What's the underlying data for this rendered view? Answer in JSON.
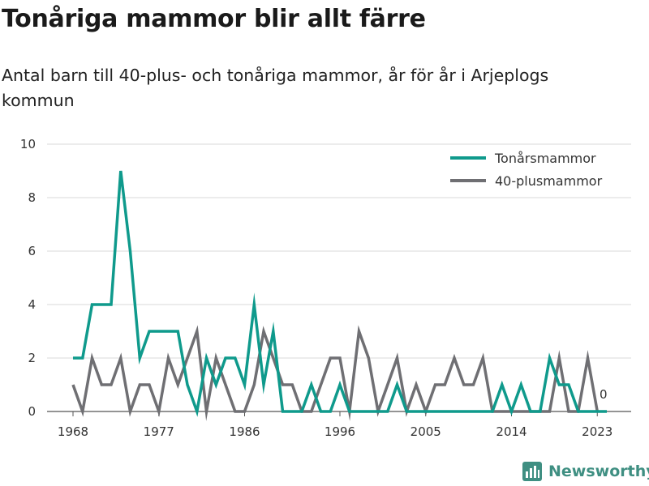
{
  "title": "Tonåriga mammor blir allt färre",
  "subtitle": "Antal barn till 40-plus- och tonåriga mammor, år för år i Arjeplogs kommun",
  "brand": {
    "name": "Newsworthy",
    "icon": "bar-chart-logo-icon",
    "color": "#3f8f82"
  },
  "chart_data": {
    "type": "line",
    "title": "Tonåriga mammor blir allt färre",
    "subtitle": "Antal barn till 40-plus- och tonåriga mammor, år för år i Arjeplogs kommun",
    "xlabel": "",
    "ylabel": "",
    "x": [
      1968,
      1969,
      1970,
      1971,
      1972,
      1973,
      1974,
      1975,
      1976,
      1977,
      1978,
      1979,
      1980,
      1981,
      1982,
      1983,
      1984,
      1985,
      1986,
      1987,
      1988,
      1989,
      1990,
      1991,
      1992,
      1993,
      1994,
      1995,
      1996,
      1997,
      1998,
      1999,
      2000,
      2001,
      2002,
      2003,
      2004,
      2005,
      2006,
      2007,
      2008,
      2009,
      2010,
      2011,
      2012,
      2013,
      2014,
      2015,
      2016,
      2017,
      2018,
      2019,
      2020,
      2021,
      2022,
      2023,
      2024
    ],
    "series": [
      {
        "name": "Tonårsmammor",
        "color": "#0f9a8c",
        "values": [
          2,
          2,
          4,
          4,
          4,
          9,
          6,
          2,
          3,
          3,
          3,
          3,
          1,
          0,
          2,
          1,
          2,
          2,
          1,
          4,
          1,
          3,
          0,
          0,
          0,
          1,
          0,
          0,
          1,
          0,
          0,
          0,
          0,
          0,
          1,
          0,
          0,
          0,
          0,
          0,
          0,
          0,
          0,
          0,
          0,
          1,
          0,
          1,
          0,
          0,
          2,
          1,
          1,
          0,
          0,
          0,
          0
        ]
      },
      {
        "name": "40-plusmammor",
        "color": "#6f6f73",
        "values": [
          1,
          0,
          2,
          1,
          1,
          2,
          0,
          1,
          1,
          0,
          2,
          1,
          2,
          3,
          0,
          2,
          1,
          0,
          0,
          1,
          3,
          2,
          1,
          1,
          0,
          0,
          1,
          2,
          2,
          0,
          3,
          2,
          0,
          1,
          2,
          0,
          1,
          0,
          1,
          1,
          2,
          1,
          1,
          2,
          0,
          0,
          0,
          0,
          0,
          0,
          0,
          2,
          0,
          0,
          2,
          0,
          null
        ]
      }
    ],
    "ylim": [
      0,
      10
    ],
    "yticks": [
      0,
      2,
      4,
      6,
      8,
      10
    ],
    "xticks": [
      1968,
      1977,
      1986,
      1996,
      2005,
      2014,
      2023
    ],
    "grid": true,
    "legend": "top-right",
    "end_label": "0"
  }
}
